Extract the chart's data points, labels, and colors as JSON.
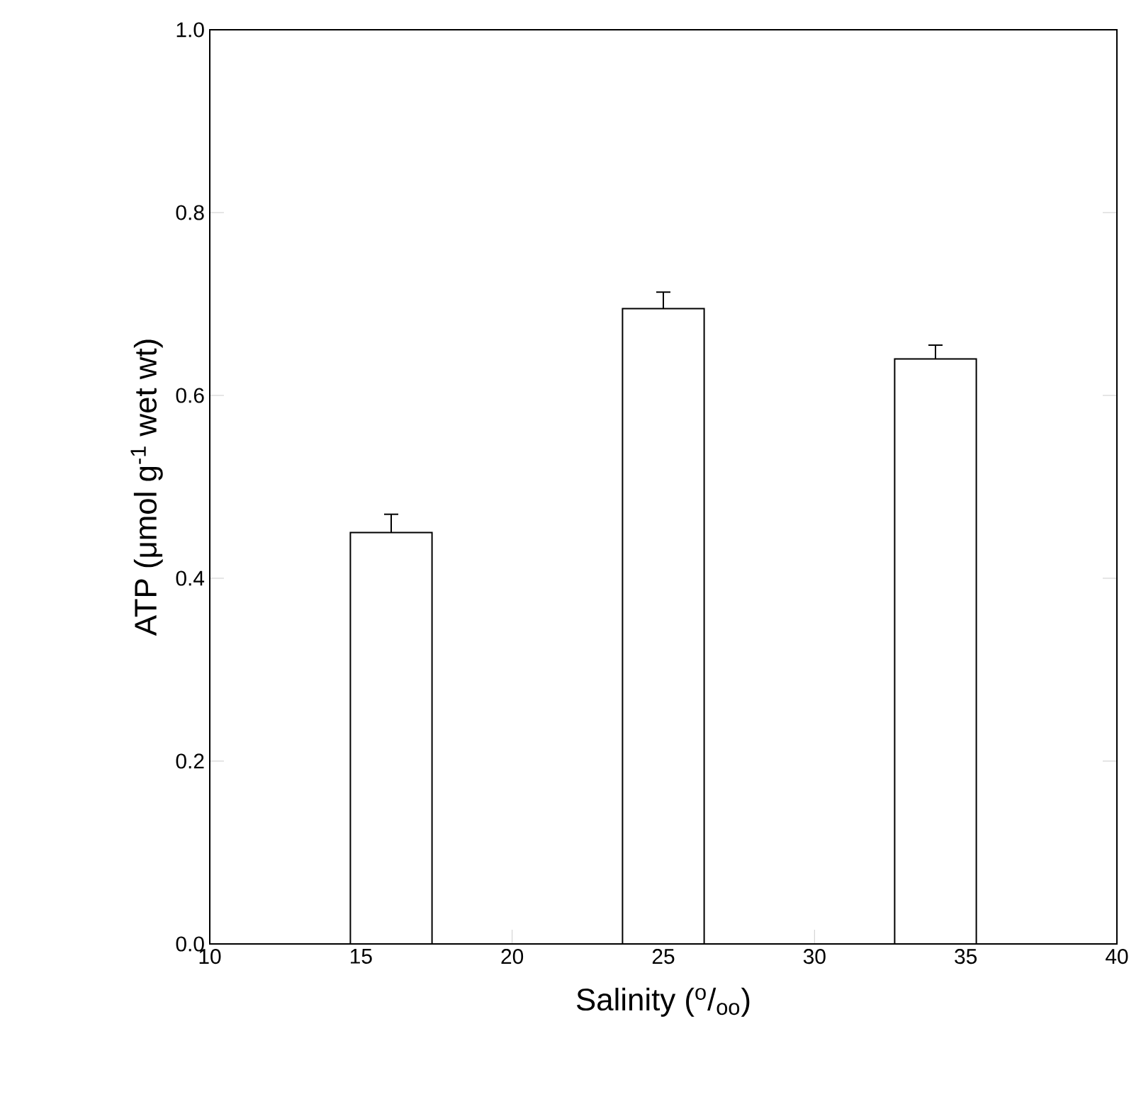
{
  "chart_data": {
    "type": "bar",
    "xlabel": "Salinity ($^{o}$/$_{oo}$)",
    "ylabel": "ATP (μmol g$^{-1}$ wet wt)",
    "x": [
      16,
      25,
      34
    ],
    "values": [
      0.45,
      0.695,
      0.64
    ],
    "errors": [
      0.02,
      0.018,
      0.015
    ],
    "color": "#ffffff",
    "xlim": [
      10,
      40
    ],
    "xticks": [
      10,
      15,
      20,
      25,
      30,
      35,
      40
    ],
    "ylim": [
      0,
      1
    ],
    "yticks": [
      {
        "value": 0,
        "label": "0.0"
      },
      {
        "value": 0.2,
        "label": "0.2"
      },
      {
        "value": 0.4,
        "label": "0.4"
      },
      {
        "value": 0.6,
        "label": "0.6"
      },
      {
        "value": 0.8,
        "label": "0.8"
      },
      {
        "value": 1,
        "label": "1.0"
      }
    ],
    "grid": false
  }
}
